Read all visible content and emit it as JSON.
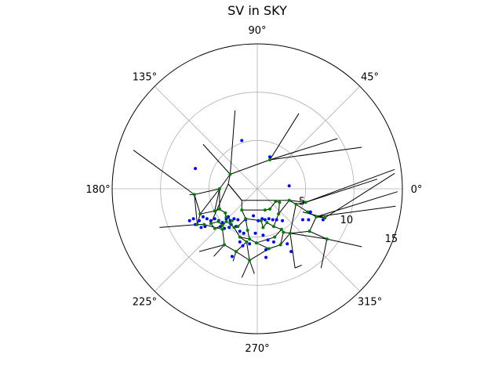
{
  "chart_data": {
    "type": "scatter",
    "projection": "polar",
    "title": "SV in SKY",
    "theta_tick_labels": [
      "0°",
      "45°",
      "90°",
      "135°",
      "180°",
      "225°",
      "270°",
      "315°"
    ],
    "r_tick_labels": [
      "5",
      "10",
      "15"
    ],
    "rlim": [
      0,
      15
    ],
    "grid": true,
    "series": [
      {
        "marker_color": "#0000ff",
        "points": [
          [
            -1.6,
            5.0
          ],
          [
            1.3,
            3.3
          ],
          [
            -6.4,
            2.1
          ],
          [
            3.3,
            0.3
          ],
          [
            -6.6,
            -3.1
          ],
          [
            -6.0,
            -3.3
          ],
          [
            -5.6,
            -2.9
          ],
          [
            -5.2,
            -3.1
          ],
          [
            -4.8,
            -3.3
          ],
          [
            -5.8,
            -4.0
          ],
          [
            -6.4,
            -3.7
          ],
          [
            -7.0,
            -3.3
          ],
          [
            -5.4,
            -3.9
          ],
          [
            -4.4,
            -3.1
          ],
          [
            -4.0,
            -3.3
          ],
          [
            -3.6,
            -3.5
          ],
          [
            -3.2,
            -3.1
          ],
          [
            -2.8,
            -3.3
          ],
          [
            -3.8,
            -3.9
          ],
          [
            -3.4,
            -4.1
          ],
          [
            -2.9,
            -4.0
          ],
          [
            -2.7,
            -3.7
          ],
          [
            -3.0,
            -2.9
          ],
          [
            -2.4,
            -3.1
          ],
          [
            -2.0,
            -3.2
          ],
          [
            -1.2,
            -3.2
          ],
          [
            -0.4,
            -2.8
          ],
          [
            0.1,
            -3.3
          ],
          [
            0.5,
            -3.1
          ],
          [
            0.8,
            -3.2
          ],
          [
            1.2,
            -3.1
          ],
          [
            1.6,
            -3.2
          ],
          [
            2.0,
            -3.2
          ],
          [
            2.6,
            -3.3
          ],
          [
            -2.2,
            -3.9
          ],
          [
            -1.8,
            -4.4
          ],
          [
            -1.4,
            -4.6
          ],
          [
            -1.8,
            -5.5
          ],
          [
            -1.5,
            -5.9
          ],
          [
            -0.8,
            -5.7
          ],
          [
            -0.2,
            -4.6
          ],
          [
            0.6,
            -4.8
          ],
          [
            1.1,
            -5.3
          ],
          [
            1.7,
            -5.5
          ],
          [
            0.9,
            -6.3
          ],
          [
            3.1,
            -5.7
          ],
          [
            3.5,
            -6.5
          ],
          [
            4.7,
            -3.2
          ],
          [
            5.3,
            -3.2
          ],
          [
            6.8,
            -3.2
          ],
          [
            5.5,
            -2.4
          ],
          [
            -2.6,
            -7.0
          ],
          [
            0.9,
            -7.1
          ]
        ]
      },
      {
        "marker_color": "#008000",
        "points": [
          [
            1.3,
            3.0
          ],
          [
            -2.8,
            1.5
          ],
          [
            -3.9,
            0.0
          ],
          [
            -6.5,
            -0.6
          ],
          [
            -5.9,
            -2.6
          ],
          [
            -6.2,
            -3.7
          ],
          [
            -4.4,
            -2.3
          ],
          [
            -3.9,
            -2.1
          ],
          [
            -3.3,
            -2.5
          ],
          [
            -3.2,
            -3.4
          ],
          [
            -2.8,
            -3.6
          ],
          [
            -3.6,
            -3.8
          ],
          [
            -4.0,
            -3.4
          ],
          [
            -4.8,
            -3.6
          ],
          [
            -4.4,
            -4.1
          ],
          [
            -2.4,
            -4.0
          ],
          [
            -1.6,
            -2.2
          ],
          [
            -1.2,
            -3.1
          ],
          [
            -1.0,
            -4.3
          ],
          [
            -0.8,
            -5.2
          ],
          [
            -1.8,
            -5.0
          ],
          [
            -3.4,
            -5.8
          ],
          [
            -2.2,
            -6.5
          ],
          [
            -0.8,
            -7.4
          ],
          [
            -0.1,
            -5.6
          ],
          [
            0.4,
            -3.3
          ],
          [
            0.6,
            -4.0
          ],
          [
            0.8,
            -2.2
          ],
          [
            1.3,
            -2.1
          ],
          [
            1.0,
            -3.5
          ],
          [
            1.7,
            -3.9
          ],
          [
            1.8,
            -5.0
          ],
          [
            1.2,
            -6.2
          ],
          [
            2.2,
            -2.6
          ],
          [
            2.5,
            -4.2
          ],
          [
            2.7,
            -4.5
          ],
          [
            3.4,
            -4.6
          ],
          [
            2.4,
            -5.8
          ],
          [
            3.3,
            -1.2
          ],
          [
            4.0,
            -1.6
          ],
          [
            5.0,
            -1.4
          ],
          [
            5.2,
            -2.4
          ],
          [
            5.4,
            -4.4
          ],
          [
            6.1,
            -2.9
          ],
          [
            7.0,
            -3.0
          ],
          [
            7.2,
            -5.2
          ],
          [
            1.9,
            -1.3
          ],
          [
            2.3,
            -1.4
          ],
          [
            -1.1,
            -5.5
          ],
          [
            -3.2,
            -2.9
          ],
          [
            -3.6,
            -4.2
          ],
          [
            -2.6,
            -3.3
          ],
          [
            -2.0,
            -3.9
          ],
          [
            -5.5,
            -3.7
          ]
        ]
      }
    ],
    "edges": [
      [
        [
          1.3,
          3.0
        ],
        [
          8.3,
          5.2
        ]
      ],
      [
        [
          1.3,
          3.0
        ],
        [
          10.8,
          4.3
        ]
      ],
      [
        [
          1.3,
          3.0
        ],
        [
          -2.8,
          1.5
        ]
      ],
      [
        [
          1.3,
          3.0
        ],
        [
          4.3,
          7.8
        ]
      ],
      [
        [
          -2.8,
          1.5
        ],
        [
          -2.3,
          8.1
        ]
      ],
      [
        [
          -2.8,
          1.5
        ],
        [
          -5.6,
          4.6
        ]
      ],
      [
        [
          -2.8,
          1.5
        ],
        [
          -3.9,
          0.0
        ]
      ],
      [
        [
          -2.8,
          1.5
        ],
        [
          -3.0,
          0.5
        ]
      ],
      [
        [
          -3.0,
          0.5
        ],
        [
          -1.6,
          -1.2
        ]
      ],
      [
        [
          -3.0,
          0.5
        ],
        [
          -4.8,
          -3.6
        ]
      ],
      [
        [
          -3.9,
          0.0
        ],
        [
          -6.5,
          -0.6
        ]
      ],
      [
        [
          -3.9,
          0.0
        ],
        [
          -4.4,
          -2.3
        ]
      ],
      [
        [
          -3.9,
          0.0
        ],
        [
          -5.9,
          -2.6
        ]
      ],
      [
        [
          -3.9,
          0.0
        ],
        [
          -3.9,
          -2.1
        ]
      ],
      [
        [
          -6.5,
          -0.6
        ],
        [
          -5.9,
          -2.6
        ]
      ],
      [
        [
          -6.5,
          -0.6
        ],
        [
          -6.2,
          -3.7
        ]
      ],
      [
        [
          -6.5,
          -0.6
        ],
        [
          -7.0,
          -0.6
        ]
      ],
      [
        [
          -6.5,
          -0.6
        ],
        [
          -12.8,
          4.0
        ]
      ],
      [
        [
          -3.0,
          0.5
        ],
        [
          -1.6,
          -1.2
        ]
      ],
      [
        [
          -1.6,
          -1.2
        ],
        [
          2.2,
          -1.2
        ]
      ],
      [
        [
          2.2,
          -1.2
        ],
        [
          3.3,
          -1.2
        ]
      ],
      [
        [
          3.3,
          -1.2
        ],
        [
          5.0,
          -1.4
        ]
      ],
      [
        [
          5.0,
          -1.4
        ],
        [
          12.4,
          1.0
        ]
      ],
      [
        [
          5.0,
          -1.4
        ],
        [
          14.2,
          2.0
        ]
      ],
      [
        [
          6.1,
          -2.9
        ],
        [
          14.3,
          -1.8
        ]
      ],
      [
        [
          6.1,
          -2.9
        ],
        [
          14.5,
          -0.3
        ]
      ],
      [
        [
          7.0,
          -3.0
        ],
        [
          14.2,
          1.6
        ]
      ],
      [
        [
          7.2,
          -5.2
        ],
        [
          10.8,
          -6.0
        ]
      ],
      [
        [
          3.4,
          -4.6
        ],
        [
          7.2,
          -5.2
        ]
      ],
      [
        [
          4.7,
          -2.4
        ],
        [
          7.0,
          -3.0
        ]
      ],
      [
        [
          2.4,
          -5.8
        ],
        [
          3.4,
          -4.6
        ]
      ],
      [
        [
          2.4,
          -5.8
        ],
        [
          1.2,
          -6.2
        ]
      ],
      [
        [
          1.2,
          -6.2
        ],
        [
          -0.8,
          -7.4
        ]
      ],
      [
        [
          -0.8,
          -7.4
        ],
        [
          -2.2,
          -6.5
        ]
      ],
      [
        [
          -2.2,
          -6.5
        ],
        [
          -3.4,
          -5.8
        ]
      ],
      [
        [
          -3.4,
          -5.8
        ],
        [
          -3.6,
          -4.2
        ]
      ],
      [
        [
          -3.6,
          -4.2
        ],
        [
          -5.5,
          -3.7
        ]
      ],
      [
        [
          -5.5,
          -3.7
        ],
        [
          -6.2,
          -3.7
        ]
      ],
      [
        [
          -6.2,
          -3.7
        ],
        [
          -5.9,
          -2.6
        ]
      ],
      [
        [
          -5.9,
          -2.6
        ],
        [
          -4.4,
          -2.3
        ]
      ],
      [
        [
          -4.4,
          -2.3
        ],
        [
          -3.9,
          -2.1
        ]
      ],
      [
        [
          -3.9,
          -2.1
        ],
        [
          -3.3,
          -2.5
        ]
      ],
      [
        [
          -3.3,
          -2.5
        ],
        [
          -3.2,
          -3.4
        ]
      ],
      [
        [
          -3.2,
          -3.4
        ],
        [
          -2.8,
          -3.6
        ]
      ],
      [
        [
          -2.8,
          -3.6
        ],
        [
          -2.4,
          -4.0
        ]
      ],
      [
        [
          -2.4,
          -4.0
        ],
        [
          -2.0,
          -3.9
        ]
      ],
      [
        [
          -2.0,
          -3.9
        ],
        [
          -1.2,
          -3.1
        ]
      ],
      [
        [
          -1.2,
          -3.1
        ],
        [
          -1.6,
          -2.2
        ]
      ],
      [
        [
          -1.6,
          -2.2
        ],
        [
          -1.6,
          -1.2
        ]
      ],
      [
        [
          -1.6,
          -2.2
        ],
        [
          0.8,
          -2.2
        ]
      ],
      [
        [
          0.8,
          -2.2
        ],
        [
          1.3,
          -2.1
        ]
      ],
      [
        [
          1.3,
          -2.1
        ],
        [
          1.9,
          -1.3
        ]
      ],
      [
        [
          1.9,
          -1.3
        ],
        [
          2.3,
          -1.4
        ]
      ],
      [
        [
          2.3,
          -1.4
        ],
        [
          2.2,
          -2.6
        ]
      ],
      [
        [
          2.2,
          -2.6
        ],
        [
          1.7,
          -3.9
        ]
      ],
      [
        [
          1.7,
          -3.9
        ],
        [
          1.0,
          -3.5
        ]
      ],
      [
        [
          1.0,
          -3.5
        ],
        [
          0.6,
          -4.0
        ]
      ],
      [
        [
          0.6,
          -4.0
        ],
        [
          0.4,
          -3.3
        ]
      ],
      [
        [
          0.4,
          -3.3
        ],
        [
          -1.2,
          -3.1
        ]
      ],
      [
        [
          -1.2,
          -3.1
        ],
        [
          -1.0,
          -4.3
        ]
      ],
      [
        [
          -1.0,
          -4.3
        ],
        [
          -0.8,
          -5.2
        ]
      ],
      [
        [
          -0.8,
          -5.2
        ],
        [
          -1.8,
          -5.0
        ]
      ],
      [
        [
          -1.8,
          -5.0
        ],
        [
          -2.4,
          -4.0
        ]
      ],
      [
        [
          -0.8,
          -5.2
        ],
        [
          -0.1,
          -5.6
        ]
      ],
      [
        [
          -0.1,
          -5.6
        ],
        [
          1.2,
          -6.2
        ]
      ],
      [
        [
          -0.1,
          -5.6
        ],
        [
          1.8,
          -5.0
        ]
      ],
      [
        [
          1.8,
          -5.0
        ],
        [
          2.5,
          -4.2
        ]
      ],
      [
        [
          2.5,
          -4.2
        ],
        [
          2.7,
          -4.5
        ]
      ],
      [
        [
          2.7,
          -4.5
        ],
        [
          3.4,
          -4.6
        ]
      ],
      [
        [
          2.7,
          -4.5
        ],
        [
          2.4,
          -5.8
        ]
      ],
      [
        [
          2.5,
          -4.2
        ],
        [
          1.7,
          -3.9
        ]
      ],
      [
        [
          2.2,
          -2.6
        ],
        [
          3.3,
          -1.2
        ]
      ],
      [
        [
          4.0,
          -1.6
        ],
        [
          5.2,
          -2.4
        ]
      ],
      [
        [
          5.2,
          -2.4
        ],
        [
          6.1,
          -2.9
        ]
      ],
      [
        [
          6.1,
          -2.9
        ],
        [
          7.0,
          -3.0
        ]
      ],
      [
        [
          5.4,
          -4.4
        ],
        [
          6.1,
          -2.9
        ]
      ],
      [
        [
          5.4,
          -4.4
        ],
        [
          3.4,
          -4.6
        ]
      ],
      [
        [
          5.4,
          -4.4
        ],
        [
          7.2,
          -5.2
        ]
      ],
      [
        [
          4.0,
          -1.6
        ],
        [
          3.4,
          -4.6
        ]
      ],
      [
        [
          4.0,
          -1.6
        ],
        [
          3.3,
          -1.2
        ]
      ],
      [
        [
          5.0,
          -1.4
        ],
        [
          4.0,
          -1.6
        ]
      ],
      [
        [
          -3.2,
          -2.9
        ],
        [
          -2.6,
          -3.3
        ]
      ],
      [
        [
          -3.6,
          -3.8
        ],
        [
          -4.0,
          -3.4
        ]
      ],
      [
        [
          -4.0,
          -3.4
        ],
        [
          -4.8,
          -3.6
        ]
      ],
      [
        [
          -4.8,
          -3.6
        ],
        [
          -4.4,
          -4.1
        ]
      ],
      [
        [
          -4.4,
          -4.1
        ],
        [
          -3.6,
          -3.8
        ]
      ],
      [
        [
          -3.6,
          -3.8
        ],
        [
          -3.2,
          -3.4
        ]
      ],
      [
        [
          -1.1,
          -5.5
        ],
        [
          -1.8,
          -5.0
        ]
      ],
      [
        [
          -1.1,
          -5.5
        ],
        [
          -0.8,
          -7.4
        ]
      ],
      [
        [
          -1.1,
          -5.5
        ],
        [
          -2.2,
          -6.5
        ]
      ],
      [
        [
          -2.2,
          -6.5
        ],
        [
          -2.5,
          -7.5
        ]
      ],
      [
        [
          -0.8,
          -7.4
        ],
        [
          -1.6,
          -9.2
        ]
      ],
      [
        [
          -0.8,
          -7.4
        ],
        [
          -0.3,
          -8.8
        ]
      ],
      [
        [
          3.4,
          -4.6
        ],
        [
          3.9,
          -8.2
        ]
      ],
      [
        [
          3.9,
          -8.2
        ],
        [
          4.6,
          -7.9
        ]
      ],
      [
        [
          7.2,
          -5.2
        ],
        [
          6.6,
          -8.2
        ]
      ],
      [
        [
          -3.4,
          -5.8
        ],
        [
          -6.0,
          -6.5
        ]
      ],
      [
        [
          -3.4,
          -5.8
        ],
        [
          -4.5,
          -7.0
        ]
      ],
      [
        [
          -6.2,
          -3.7
        ],
        [
          -10.1,
          -4.0
        ]
      ]
    ]
  }
}
